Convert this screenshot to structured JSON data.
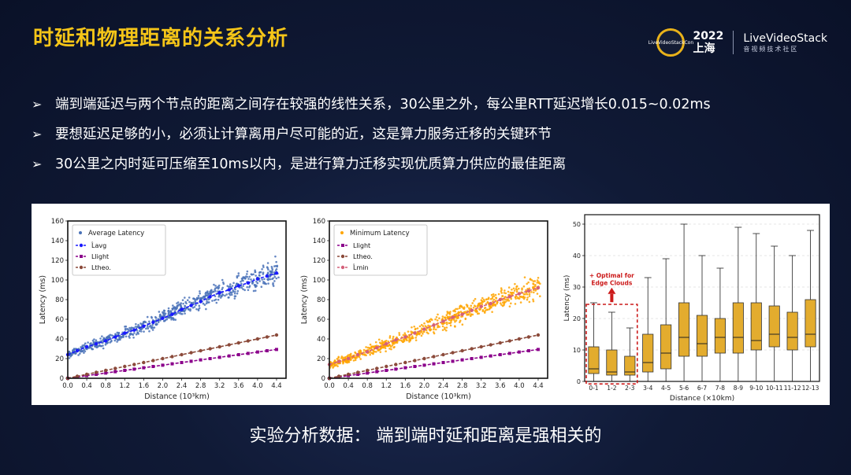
{
  "header": {
    "title": "时延和物理距离的关系分析"
  },
  "logo": {
    "badge": "LiveVideoStackCon",
    "year": "2022",
    "city": "上海",
    "brand": "LiveVideoStack",
    "sub": "音视频技术社区"
  },
  "bullets": [
    "端到端延迟与两个节点的距离之间存在较强的线性关系，30公里之外，每公里RTT延迟增长0.015~0.02ms",
    "要想延迟足够的小，必须让计算离用户尽可能的近，这是算力服务迁移的关键环节",
    "30公里之内时延可压缩至10ms以内，是进行算力迁移实现优质算力供应的最佳距离"
  ],
  "caption": "实验分析数据： 端到端时延和距离是强相关的",
  "colors": {
    "accent": "#f5c518",
    "blue": "#4a72b8",
    "navy": "#1a1aff",
    "purple": "#8b008b",
    "brown": "#8b4a3a",
    "orange": "#ffa500",
    "pink": "#d4607a",
    "box": "#e3ac2e"
  },
  "chart_data": [
    {
      "type": "scatter",
      "xlabel": "Distance (10³km)",
      "ylabel": "Latency (ms)",
      "xlim": [
        0,
        4.6
      ],
      "ylim": [
        0,
        160
      ],
      "xticks": [
        "0.0",
        "0.4",
        "0.8",
        "1.2",
        "1.6",
        "2.0",
        "2.4",
        "2.8",
        "3.2",
        "3.6",
        "4.0",
        "4.4"
      ],
      "yticks": [
        "0",
        "20",
        "40",
        "60",
        "80",
        "100",
        "120",
        "140",
        "160"
      ],
      "legend_position": "top-left",
      "scatter": {
        "name": "Average Latency",
        "x": [
          0.05,
          0.4,
          0.8,
          1.2,
          1.6,
          2.0,
          2.4,
          2.8,
          3.2,
          3.6,
          4.0,
          4.3
        ],
        "y": [
          25,
          32,
          38,
          46,
          53,
          62,
          71,
          80,
          88,
          95,
          102,
          108
        ]
      },
      "series": [
        {
          "name": "L̂avg",
          "x": [
            0.0,
            0.2,
            0.4,
            0.6,
            0.8,
            1.0,
            1.2,
            1.4,
            1.6,
            1.8,
            2.0,
            2.2,
            2.4,
            2.6,
            2.8,
            3.0,
            3.2,
            3.4,
            3.6,
            3.8,
            4.0,
            4.2,
            4.4
          ],
          "y": [
            24,
            28,
            32,
            35,
            38,
            42,
            46,
            49,
            53,
            57,
            61,
            65,
            70,
            74,
            78,
            83,
            87,
            90,
            94,
            97,
            101,
            104,
            107
          ]
        },
        {
          "name": "Llight",
          "x": [
            0.0,
            0.2,
            0.4,
            0.6,
            0.8,
            1.0,
            1.2,
            1.4,
            1.6,
            1.8,
            2.0,
            2.2,
            2.4,
            2.6,
            2.8,
            3.0,
            3.2,
            3.4,
            3.6,
            3.8,
            4.0,
            4.2,
            4.4
          ],
          "y": [
            0,
            1.3,
            2.7,
            4,
            5.3,
            6.7,
            8,
            9.3,
            10.7,
            12,
            13.3,
            14.7,
            16,
            17.3,
            18.7,
            20,
            21.3,
            22.7,
            24,
            25.3,
            26.7,
            28,
            29.3
          ]
        },
        {
          "name": "Ltheo.",
          "x": [
            0.0,
            0.2,
            0.4,
            0.6,
            0.8,
            1.0,
            1.2,
            1.4,
            1.6,
            1.8,
            2.0,
            2.2,
            2.4,
            2.6,
            2.8,
            3.0,
            3.2,
            3.4,
            3.6,
            3.8,
            4.0,
            4.2,
            4.4
          ],
          "y": [
            0,
            2,
            4,
            6,
            8,
            10,
            12,
            14,
            16,
            18,
            20,
            22,
            24,
            26,
            28,
            30,
            32,
            34,
            36,
            38,
            40,
            42,
            44
          ]
        }
      ]
    },
    {
      "type": "scatter",
      "xlabel": "Distance (10³km)",
      "ylabel": "Latency (ms)",
      "xlim": [
        0,
        4.6
      ],
      "ylim": [
        0,
        160
      ],
      "xticks": [
        "0.0",
        "0.4",
        "0.8",
        "1.2",
        "1.6",
        "2.0",
        "2.4",
        "2.8",
        "3.2",
        "3.6",
        "4.0",
        "4.4"
      ],
      "yticks": [
        "0",
        "20",
        "40",
        "60",
        "80",
        "100",
        "120",
        "140",
        "160"
      ],
      "legend_position": "top-left",
      "scatter": {
        "name": "Minimum Latency",
        "x": [
          0.05,
          0.4,
          0.8,
          1.2,
          1.6,
          2.0,
          2.4,
          2.8,
          3.2,
          3.6,
          4.0,
          4.3
        ],
        "y": [
          14,
          20,
          27,
          35,
          42,
          50,
          58,
          66,
          73,
          80,
          86,
          92
        ]
      },
      "series": [
        {
          "name": "Llight",
          "x": [
            0.0,
            0.2,
            0.4,
            0.6,
            0.8,
            1.0,
            1.2,
            1.4,
            1.6,
            1.8,
            2.0,
            2.2,
            2.4,
            2.6,
            2.8,
            3.0,
            3.2,
            3.4,
            3.6,
            3.8,
            4.0,
            4.2,
            4.4
          ],
          "y": [
            0,
            1.3,
            2.7,
            4,
            5.3,
            6.7,
            8,
            9.3,
            10.7,
            12,
            13.3,
            14.7,
            16,
            17.3,
            18.7,
            20,
            21.3,
            22.7,
            24,
            25.3,
            26.7,
            28,
            29.3
          ]
        },
        {
          "name": "Ltheo.",
          "x": [
            0.0,
            0.2,
            0.4,
            0.6,
            0.8,
            1.0,
            1.2,
            1.4,
            1.6,
            1.8,
            2.0,
            2.2,
            2.4,
            2.6,
            2.8,
            3.0,
            3.2,
            3.4,
            3.6,
            3.8,
            4.0,
            4.2,
            4.4
          ],
          "y": [
            0,
            2,
            4,
            6,
            8,
            10,
            12,
            14,
            16,
            18,
            20,
            22,
            24,
            26,
            28,
            30,
            32,
            34,
            36,
            38,
            40,
            42,
            44
          ]
        },
        {
          "name": "L̂min",
          "x": [
            0.0,
            0.2,
            0.4,
            0.6,
            0.8,
            1.0,
            1.2,
            1.4,
            1.6,
            1.8,
            2.0,
            2.2,
            2.4,
            2.6,
            2.8,
            3.0,
            3.2,
            3.4,
            3.6,
            3.8,
            4.0,
            4.2,
            4.4
          ],
          "y": [
            14,
            17,
            20,
            24,
            27,
            31,
            35,
            39,
            42,
            46,
            50,
            54,
            58,
            62,
            65,
            69,
            73,
            76,
            80,
            83,
            86,
            89,
            92
          ]
        }
      ]
    },
    {
      "type": "box",
      "xlabel": "Distance (×10km)",
      "ylabel": "Latency (ms)",
      "ylim": [
        0,
        53
      ],
      "yticks": [
        "0",
        "10",
        "20",
        "30",
        "40",
        "50"
      ],
      "categories": [
        "0-1",
        "1-2",
        "2-3",
        "3-4",
        "4-5",
        "5-6",
        "6-7",
        "7-8",
        "8-9",
        "9-10",
        "10-11",
        "11-12",
        "12-13"
      ],
      "boxes": [
        {
          "min": 0,
          "q1": 2.5,
          "median": 4,
          "q3": 11,
          "max": 25
        },
        {
          "min": 0,
          "q1": 2,
          "median": 3,
          "q3": 10,
          "max": 22
        },
        {
          "min": 0,
          "q1": 2,
          "median": 3,
          "q3": 8,
          "max": 17
        },
        {
          "min": 0,
          "q1": 3,
          "median": 6,
          "q3": 15,
          "max": 33
        },
        {
          "min": 0,
          "q1": 4,
          "median": 9,
          "q3": 18,
          "max": 39
        },
        {
          "min": 0,
          "q1": 8,
          "median": 14,
          "q3": 25,
          "max": 50
        },
        {
          "min": 0,
          "q1": 8,
          "median": 12,
          "q3": 21,
          "max": 40
        },
        {
          "min": 0,
          "q1": 9,
          "median": 14,
          "q3": 20,
          "max": 36
        },
        {
          "min": 0,
          "q1": 9,
          "median": 14,
          "q3": 25,
          "max": 49
        },
        {
          "min": 0,
          "q1": 10,
          "median": 13,
          "q3": 25,
          "max": 47
        },
        {
          "min": 0,
          "q1": 11,
          "median": 15,
          "q3": 24,
          "max": 43
        },
        {
          "min": 0,
          "q1": 10,
          "median": 14,
          "q3": 22,
          "max": 40
        },
        {
          "min": 0,
          "q1": 11,
          "median": 15,
          "q3": 26,
          "max": 48
        }
      ],
      "annotation": {
        "line1": "+ Optimal for",
        "line2": "Edge Clouds"
      }
    }
  ]
}
